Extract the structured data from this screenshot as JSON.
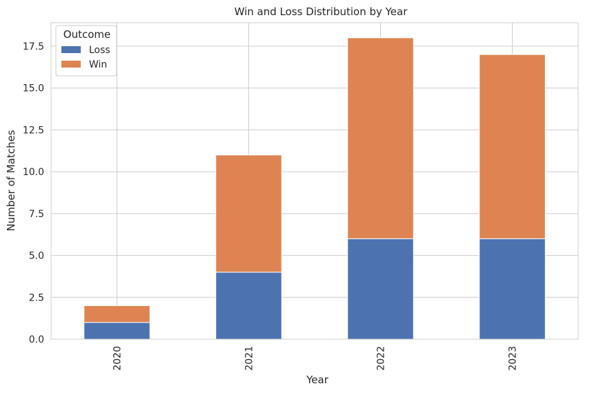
{
  "chart_data": {
    "type": "bar",
    "stacked": true,
    "title": "Win and Loss Distribution by Year",
    "xlabel": "Year",
    "ylabel": "Number of Matches",
    "categories": [
      "2020",
      "2021",
      "2022",
      "2023"
    ],
    "series": [
      {
        "name": "Loss",
        "values": [
          1,
          4,
          6,
          6
        ],
        "color": "#4c72b0"
      },
      {
        "name": "Win",
        "values": [
          1,
          7,
          12,
          11
        ],
        "color": "#dd8452"
      }
    ],
    "ylim": [
      0,
      18.9
    ],
    "yticks": [
      "0.0",
      "2.5",
      "5.0",
      "7.5",
      "10.0",
      "12.5",
      "15.0",
      "17.5"
    ],
    "grid": true,
    "legend": {
      "title": "Outcome",
      "placement": "top-left"
    }
  }
}
